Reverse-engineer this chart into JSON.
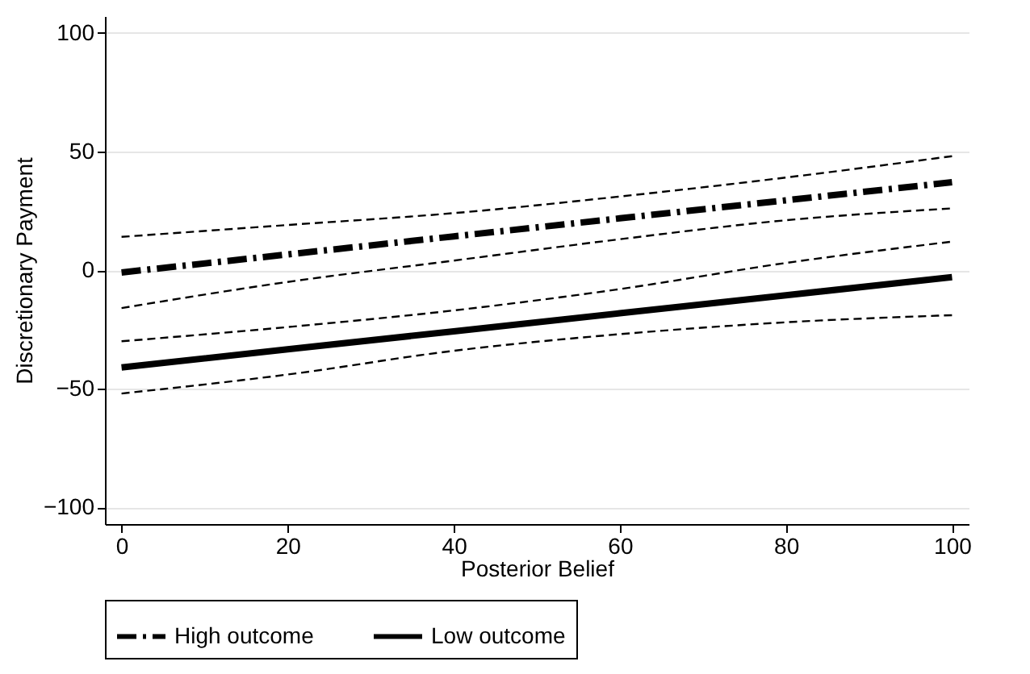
{
  "chart_data": {
    "type": "line",
    "xlabel": "Posterior Belief",
    "ylabel": "Discretionary Payment",
    "x": [
      0,
      20,
      40,
      60,
      80,
      100
    ],
    "series": [
      {
        "name": "High outcome",
        "color": "#000000",
        "line_style": "dashed",
        "values": [
          -1,
          6.6,
          14.2,
          21.8,
          29.4,
          37
        ]
      },
      {
        "name": "Low outcome",
        "color": "#000000",
        "line_style": "solid",
        "values": [
          -41,
          -33.4,
          -25.8,
          -18.2,
          -10.6,
          -3
        ]
      },
      {
        "color": "#000000",
        "line_style": "dashed",
        "values": [
          14,
          19,
          24,
          31,
          39,
          48
        ]
      },
      {
        "color": "#000000",
        "line_style": "dashed",
        "values": [
          -16,
          -5,
          4,
          13,
          21,
          26
        ]
      },
      {
        "color": "#000000",
        "line_style": "dashed",
        "values": [
          -30,
          -24,
          -17,
          -8,
          3,
          12
        ]
      },
      {
        "color": "#000000",
        "line_style": "dashed",
        "values": [
          -52,
          -44,
          -34,
          -27,
          -22,
          -19
        ]
      }
    ],
    "xlim": [
      -2,
      102
    ],
    "xticks": [
      0,
      20,
      40,
      60,
      80,
      100
    ],
    "ylim": [
      -107,
      107
    ],
    "yticks": [
      -100,
      -50,
      0,
      50,
      100
    ],
    "grid": "y",
    "legend": "bottom",
    "marker": "none"
  }
}
